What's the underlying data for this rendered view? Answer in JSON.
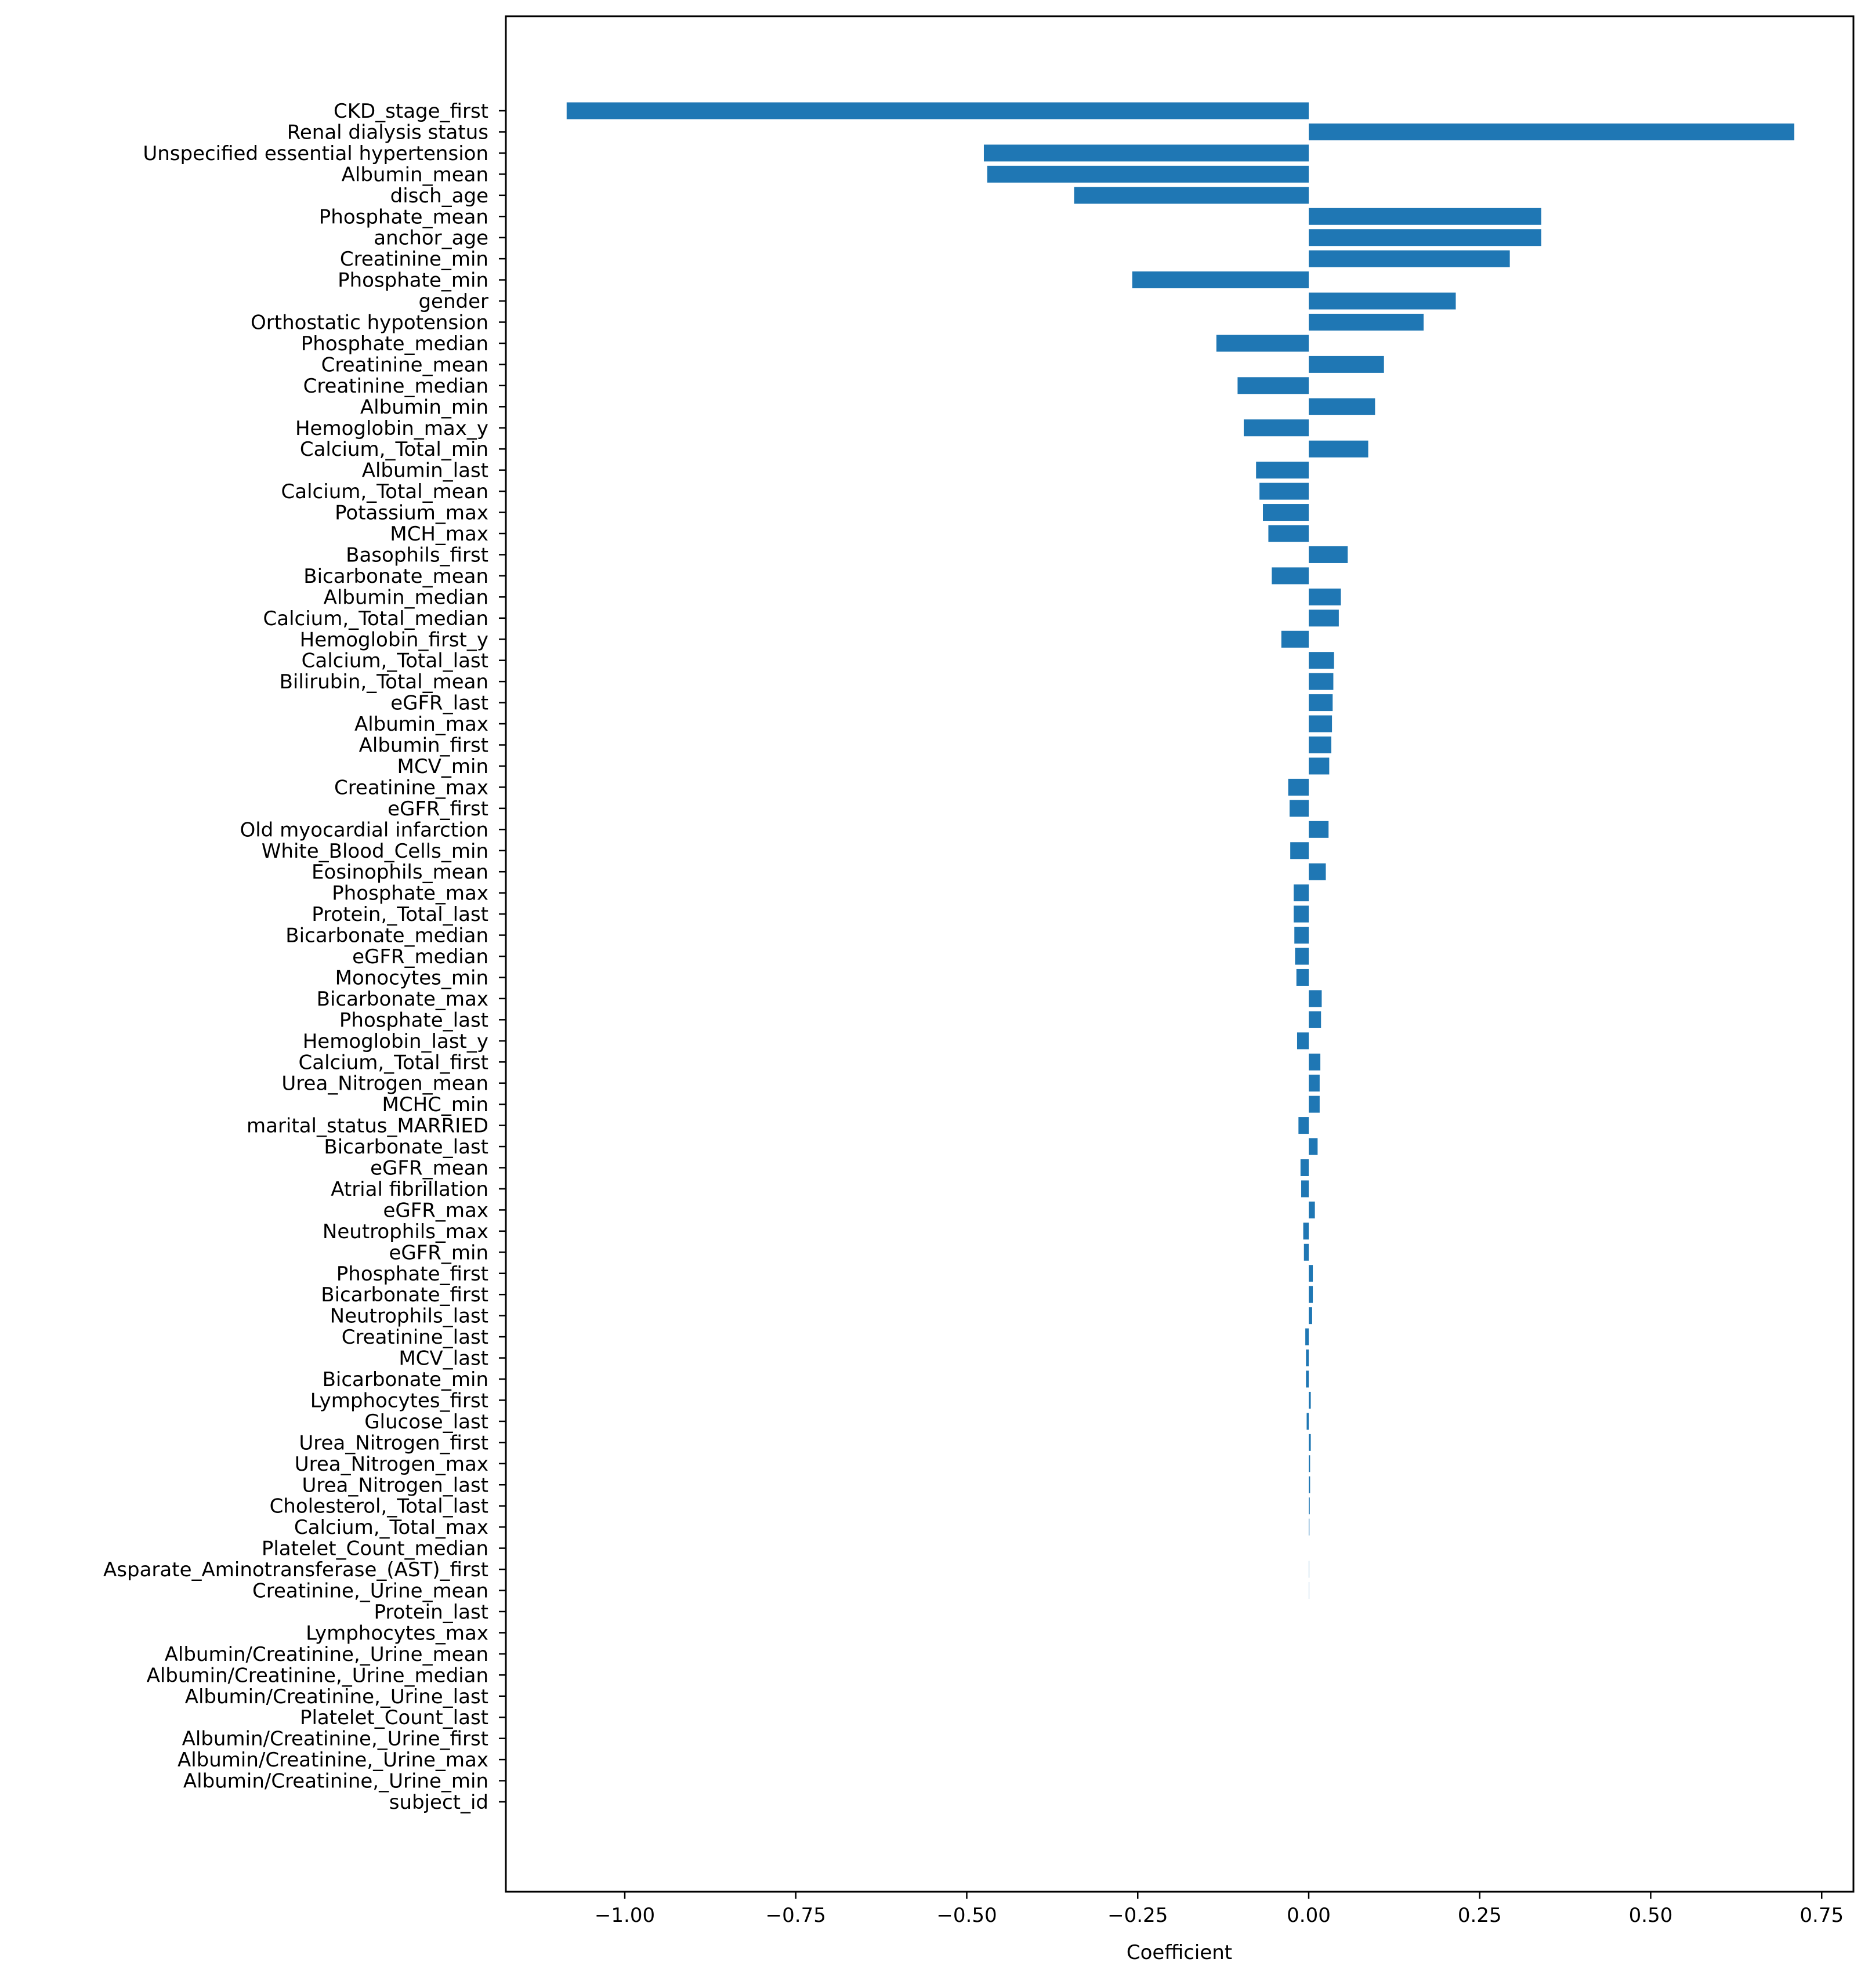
{
  "chart_data": {
    "type": "bar",
    "orientation": "horizontal",
    "title": "",
    "xlabel": "Coefficient",
    "ylabel": "",
    "xlim": [
      -1.16,
      0.79
    ],
    "xticks": [
      -1.0,
      -0.75,
      -0.5,
      -0.25,
      0.0,
      0.25,
      0.5,
      0.75
    ],
    "xtick_labels": [
      "−1.00",
      "−0.75",
      "−0.50",
      "−0.25",
      "0.00",
      "0.25",
      "0.50",
      "0.75"
    ],
    "grid": false,
    "bar_color": "#1f77b4",
    "categories": [
      "CKD_stage_first",
      "Renal dialysis status",
      "Unspecified essential hypertension",
      "Albumin_mean",
      "disch_age",
      "Phosphate_mean",
      "anchor_age",
      "Creatinine_min",
      "Phosphate_min",
      "gender",
      "Orthostatic hypotension",
      "Phosphate_median",
      "Creatinine_mean",
      "Creatinine_median",
      "Albumin_min",
      "Hemoglobin_max_y",
      "Calcium,_Total_min",
      "Albumin_last",
      "Calcium,_Total_mean",
      "Potassium_max",
      "MCH_max",
      "Basophils_first",
      "Bicarbonate_mean",
      "Albumin_median",
      "Calcium,_Total_median",
      "Hemoglobin_first_y",
      "Calcium,_Total_last",
      "Bilirubin,_Total_mean",
      "eGFR_last",
      "Albumin_max",
      "Albumin_first",
      "MCV_min",
      "Creatinine_max",
      "eGFR_first",
      "Old myocardial infarction",
      "White_Blood_Cells_min",
      "Eosinophils_mean",
      "Phosphate_max",
      "Protein,_Total_last",
      "Bicarbonate_median",
      "eGFR_median",
      "Monocytes_min",
      "Bicarbonate_max",
      "Phosphate_last",
      "Hemoglobin_last_y",
      "Calcium,_Total_first",
      "Urea_Nitrogen_mean",
      "MCHC_min",
      "marital_status_MARRIED",
      "Bicarbonate_last",
      "eGFR_mean",
      "Atrial fibrillation",
      "eGFR_max",
      "Neutrophils_max",
      "eGFR_min",
      "Phosphate_first",
      "Bicarbonate_first",
      "Neutrophils_last",
      "Creatinine_last",
      "MCV_last",
      "Bicarbonate_min",
      "Lymphocytes_first",
      "Glucose_last",
      "Urea_Nitrogen_first",
      "Urea_Nitrogen_max",
      "Urea_Nitrogen_last",
      "Cholesterol,_Total_last",
      "Calcium,_Total_max",
      "Platelet_Count_median",
      "Asparate_Aminotransferase_(AST)_first",
      "Creatinine,_Urine_mean",
      "Protein_last",
      "Lymphocytes_max",
      "Albumin/Creatinine,_Urine_mean",
      "Albumin/Creatinine,_Urine_median",
      "Albumin/Creatinine,_Urine_last",
      "Platelet_Count_last",
      "Albumin/Creatinine,_Urine_first",
      "Albumin/Creatinine,_Urine_max",
      "Albumin/Creatinine,_Urine_min",
      "subject_id"
    ],
    "values": [
      -1.085,
      0.71,
      -0.475,
      -0.47,
      -0.343,
      0.34,
      0.34,
      0.294,
      -0.258,
      0.215,
      0.168,
      -0.135,
      0.11,
      -0.104,
      0.097,
      -0.095,
      0.087,
      -0.077,
      -0.072,
      -0.067,
      -0.059,
      0.057,
      -0.054,
      0.047,
      0.044,
      -0.04,
      0.037,
      0.036,
      0.035,
      0.034,
      0.033,
      0.03,
      -0.03,
      -0.028,
      0.029,
      -0.027,
      0.025,
      -0.022,
      -0.022,
      -0.021,
      -0.02,
      -0.018,
      0.019,
      0.018,
      -0.017,
      0.017,
      0.016,
      0.016,
      -0.015,
      0.013,
      -0.012,
      -0.011,
      0.009,
      -0.008,
      -0.007,
      0.006,
      0.006,
      0.005,
      -0.005,
      -0.004,
      -0.004,
      0.003,
      -0.003,
      0.003,
      0.002,
      0.002,
      0.0015,
      0.001,
      0.0,
      0.0005,
      0.0004,
      0.0,
      0.0,
      0.0,
      0.0,
      0.0,
      0.0,
      0.0,
      0.0,
      0.0,
      0.0
    ]
  }
}
